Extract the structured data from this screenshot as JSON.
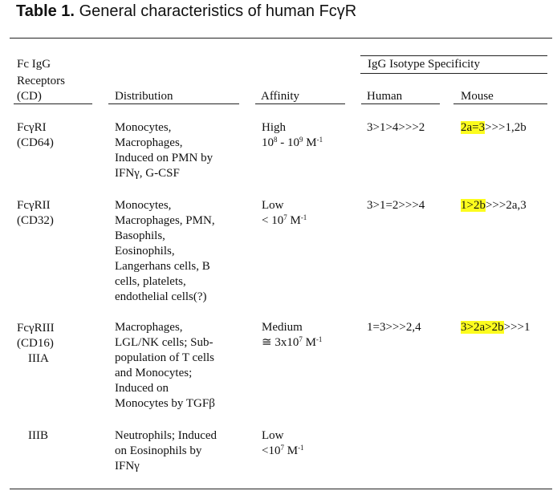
{
  "title": {
    "label": "Table 1.",
    "text": "General characteristics of human FcγR"
  },
  "headers": {
    "receptors": [
      "Fc IgG",
      "Receptors",
      "(CD)"
    ],
    "distribution": "Distribution",
    "affinity": "Affinity",
    "isotype_group": "IgG Isotype Specificity",
    "human": "Human",
    "mouse": "Mouse"
  },
  "rows": [
    {
      "receptor": [
        "FcγRI",
        "(CD64)"
      ],
      "distribution": [
        "Monocytes,",
        "Macrophages,",
        "Induced on PMN by",
        "IFNγ, G-CSF"
      ],
      "affinity_level": "High",
      "affinity_value": {
        "a": "10",
        "a_exp": "8",
        "mid": " - 10",
        "b_exp": "9",
        "unit": " M",
        "unit_exp": "-1"
      },
      "human": "3>1>4>>>2",
      "mouse_highlight": "2a=3",
      "mouse_rest": ">>>1,2b"
    },
    {
      "receptor": [
        "FcγRII",
        "(CD32)"
      ],
      "distribution": [
        "Monocytes,",
        "Macrophages, PMN,",
        "Basophils,",
        "Eosinophils,",
        "Langerhans cells, B",
        "cells, platelets,",
        "endothelial cells(?)"
      ],
      "affinity_level": "Low",
      "affinity_value": {
        "a": "< 10",
        "a_exp": "7",
        "unit": " M",
        "unit_exp": "-1"
      },
      "human": "3>1=2>>>4",
      "mouse_highlight": "1>2b",
      "mouse_rest": ">>>2a,3"
    },
    {
      "receptor": [
        "FcγRIII",
        "(CD16)",
        "IIIA"
      ],
      "distribution": [
        "Macrophages,",
        "LGL/NK cells; Sub-",
        "population of T cells",
        "and Monocytes;",
        "Induced on",
        "Monocytes by TGFβ"
      ],
      "affinity_level": "Medium",
      "affinity_value": {
        "a": "≅ 3x10",
        "a_exp": "7",
        "unit": " M",
        "unit_exp": "-1"
      },
      "human": "1=3>>>2,4",
      "mouse_highlight": "3>2a>2b",
      "mouse_rest": ">>>1"
    },
    {
      "receptor": [
        "IIIB"
      ],
      "distribution": [
        "Neutrophils; Induced",
        "on Eosinophils by",
        "IFNγ"
      ],
      "affinity_level": "Low",
      "affinity_value": {
        "a": "<10",
        "a_exp": "7",
        "unit": " M",
        "unit_exp": "-1"
      }
    }
  ]
}
